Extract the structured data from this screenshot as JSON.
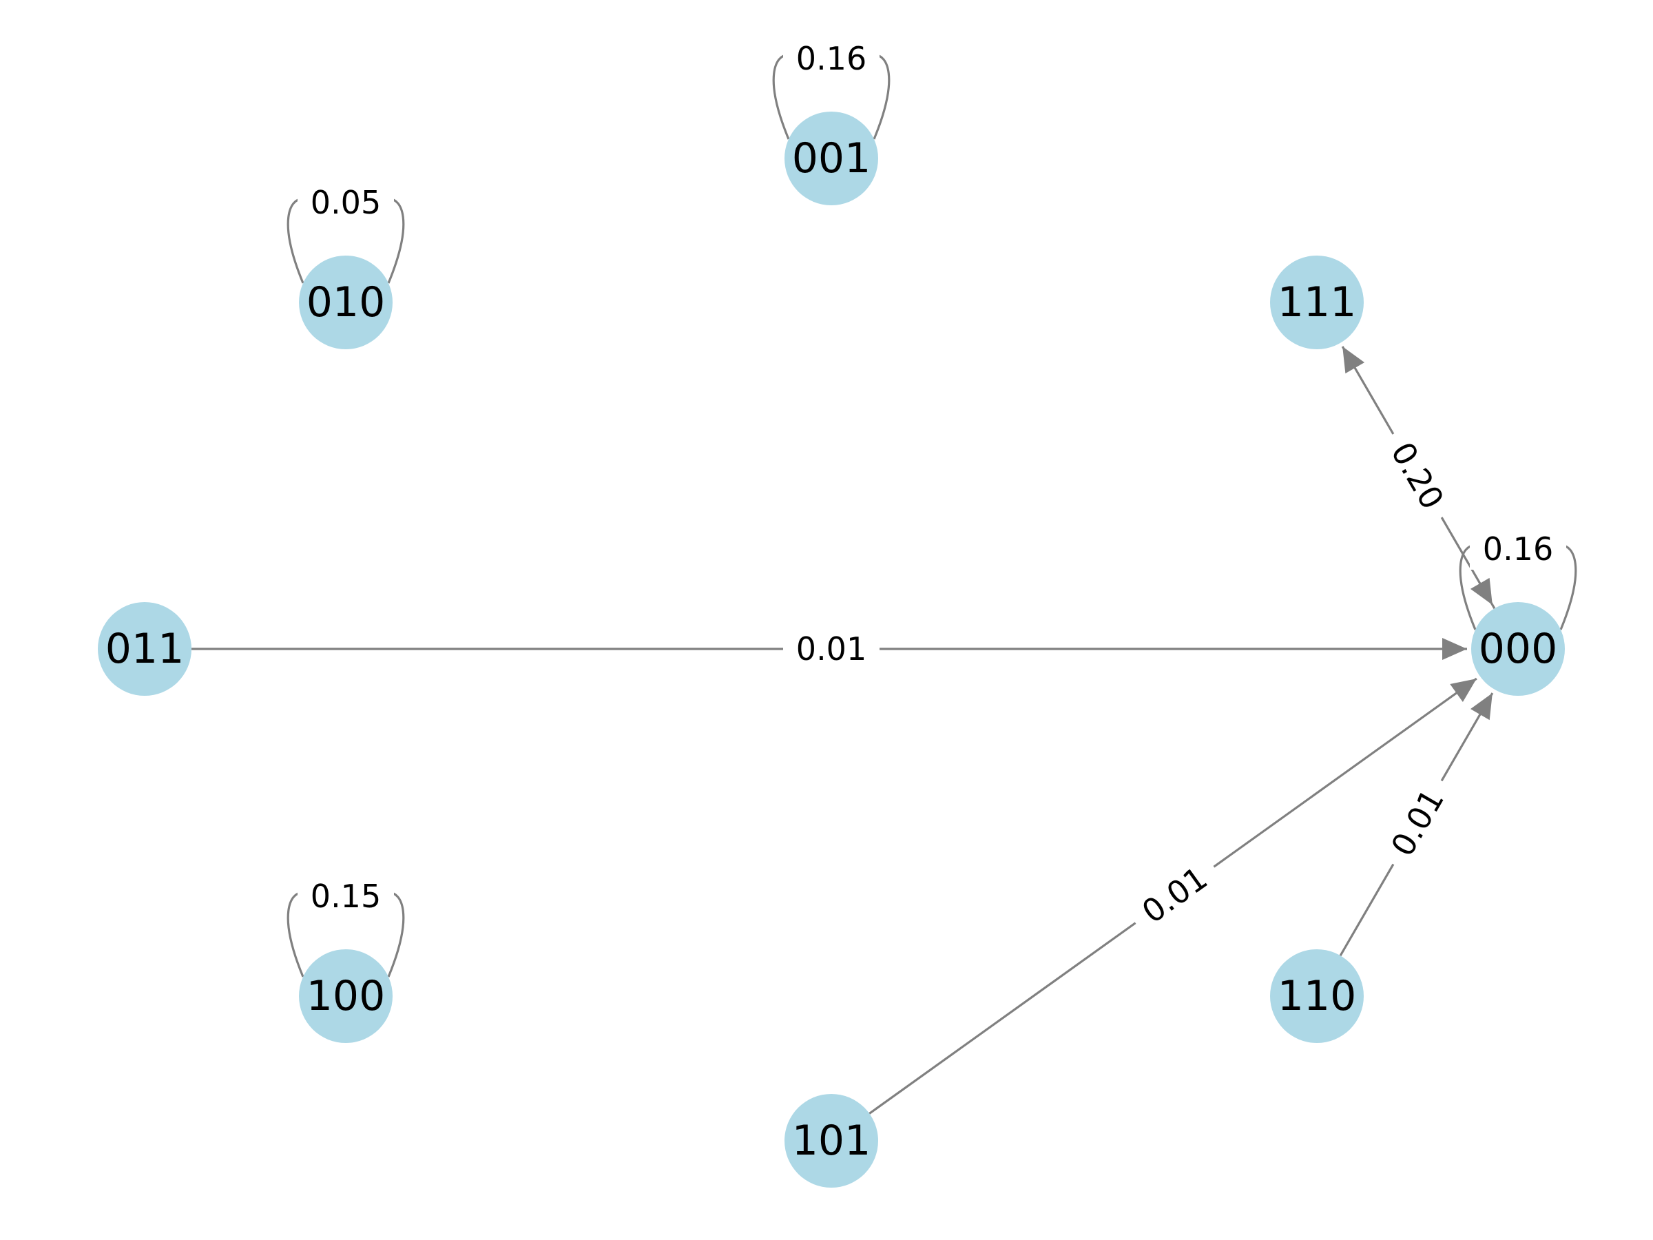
{
  "graph": {
    "node_color": "#add8e6",
    "edge_color": "#808080",
    "nodes": [
      {
        "id": "000"
      },
      {
        "id": "001"
      },
      {
        "id": "010"
      },
      {
        "id": "011"
      },
      {
        "id": "100"
      },
      {
        "id": "101"
      },
      {
        "id": "110"
      },
      {
        "id": "111"
      }
    ],
    "edges": [
      {
        "source": "001",
        "target": "001",
        "label": "0.16"
      },
      {
        "source": "010",
        "target": "010",
        "label": "0.05"
      },
      {
        "source": "100",
        "target": "100",
        "label": "0.15"
      },
      {
        "source": "000",
        "target": "000",
        "label": "0.16"
      },
      {
        "source": "000",
        "target": "111",
        "label": "0.20"
      },
      {
        "source": "111",
        "target": "000",
        "label": "0.20"
      },
      {
        "source": "011",
        "target": "000",
        "label": "0.01"
      },
      {
        "source": "101",
        "target": "000",
        "label": "0.01"
      },
      {
        "source": "110",
        "target": "000",
        "label": "0.01"
      }
    ]
  }
}
